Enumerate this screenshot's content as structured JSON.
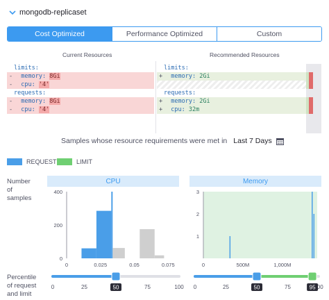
{
  "header": {
    "title": "mongodb-replicaset"
  },
  "tabs": [
    {
      "label": "Cost Optimized",
      "active": true
    },
    {
      "label": "Performance Optimized",
      "active": false
    },
    {
      "label": "Custom",
      "active": false
    }
  ],
  "current": {
    "title": "Current Resources",
    "lines": [
      {
        "sign": "",
        "indent": "",
        "key": "limits:",
        "val": ""
      },
      {
        "sign": "-",
        "indent": "  ",
        "key": "memory: ",
        "val": "8Gi"
      },
      {
        "sign": "-",
        "indent": "  ",
        "key": "cpu: ",
        "val": "'4'"
      },
      {
        "sign": "",
        "indent": "",
        "key": "requests:",
        "val": ""
      },
      {
        "sign": "-",
        "indent": "  ",
        "key": "memory: ",
        "val": "8Gi"
      },
      {
        "sign": "-",
        "indent": "  ",
        "key": "cpu: ",
        "val": "'4'"
      }
    ]
  },
  "recommended": {
    "title": "Recommended Resources",
    "lines": [
      {
        "sign": "",
        "indent": "",
        "key": "limits:",
        "val": ""
      },
      {
        "sign": "+",
        "indent": "  ",
        "key": "memory: ",
        "val": "2Gi"
      },
      {
        "sign": "",
        "indent": "",
        "key": "",
        "val": ""
      },
      {
        "sign": "",
        "indent": "",
        "key": "requests:",
        "val": ""
      },
      {
        "sign": "+",
        "indent": "  ",
        "key": "memory: ",
        "val": "2Gi"
      },
      {
        "sign": "+",
        "indent": "  ",
        "key": "cpu: ",
        "val": "32m"
      }
    ]
  },
  "samples": {
    "label": "Samples whose resource requirements were met in",
    "period": "Last 7 Days"
  },
  "legend": {
    "request": "REQUEST",
    "limit": "LIMIT"
  },
  "labels": {
    "number_of_samples": [
      "Number",
      "of",
      "samples"
    ],
    "percentile": [
      "Percentile",
      "of request",
      "and limit"
    ]
  },
  "colors": {
    "accent": "#3c9af0",
    "request": "#4a9ee8",
    "limit": "#6fcf72",
    "gray": "#cfcfcf",
    "memory_bg": "#dff2e2"
  },
  "chart_data": [
    {
      "type": "bar",
      "title": "CPU",
      "ylim": [
        0,
        400
      ],
      "yticks": [
        "0",
        "200",
        "400"
      ],
      "xticks": [
        "0",
        "0.025",
        "0.05",
        "0.075"
      ],
      "xlim": [
        0,
        0.08
      ],
      "series": [
        {
          "color": "#4a9ee8",
          "bins": [
            {
              "x0": 0.011,
              "x1": 0.022,
              "y": 60
            },
            {
              "x0": 0.022,
              "x1": 0.033,
              "y": 285
            },
            {
              "x0": 0.033,
              "x1": 0.034,
              "y": 400
            }
          ]
        },
        {
          "color": "#cfcfcf",
          "bins": [
            {
              "x0": 0.034,
              "x1": 0.043,
              "y": 62
            },
            {
              "x0": 0.054,
              "x1": 0.065,
              "y": 175
            },
            {
              "x0": 0.065,
              "x1": 0.072,
              "y": 18
            }
          ]
        }
      ]
    },
    {
      "type": "bar",
      "title": "Memory",
      "ylim": [
        0,
        3
      ],
      "yticks": [
        "1",
        "2",
        "3"
      ],
      "xticks": [
        "0",
        "500M",
        "1,000M"
      ],
      "xlim": [
        0,
        1440
      ],
      "shaded": [
        0,
        1440
      ],
      "series": [
        {
          "color": "#4a9ee8",
          "bins": [
            {
              "x0": 330,
              "x1": 340,
              "y": 1
            },
            {
              "x0": 1370,
              "x1": 1378,
              "y": 3
            },
            {
              "x0": 1392,
              "x1": 1400,
              "y": 2
            }
          ]
        }
      ]
    }
  ],
  "sliders": [
    {
      "name": "cpu",
      "ticks": [
        "0",
        "25",
        "50",
        "75",
        "100"
      ],
      "value": 50,
      "value_label": "50"
    },
    {
      "name": "memory",
      "ticks": [
        "0",
        "25",
        "50",
        "75",
        "100"
      ],
      "request": 50,
      "request_label": "50",
      "limit": 95,
      "limit_label": "95"
    }
  ]
}
